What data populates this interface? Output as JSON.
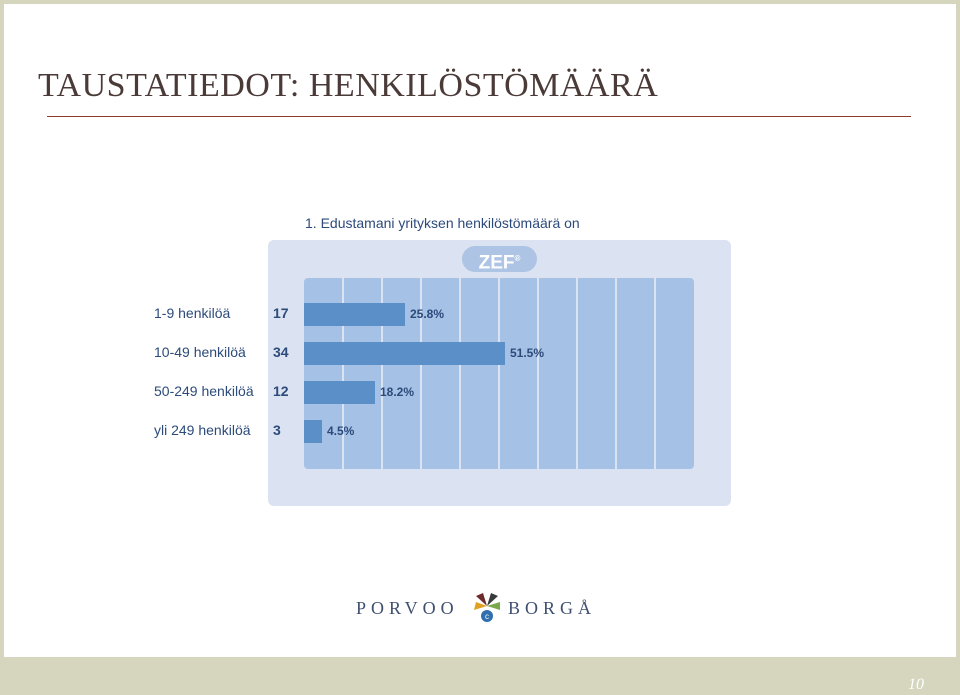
{
  "slide": {
    "title": "TAUSTATIEDOT: HENKILÖSTÖMÄÄRÄ",
    "page_number": "10",
    "logo_left": "PORVOO",
    "logo_right": "BORGÅ",
    "colors": {
      "title": "#4a3a38",
      "rule": "#8b3a2e",
      "frame": "#d6d6bf"
    }
  },
  "chart_data": {
    "type": "bar",
    "orientation": "horizontal",
    "title": "1. Edustamani yrityksen henkilöstömäärä on",
    "badge": "ZEF",
    "badge_mark": "®",
    "categories": [
      "1-9 henkilöä",
      "10-49 henkilöä",
      "50-249 henkilöä",
      "yli 249 henkilöä"
    ],
    "counts": [
      17,
      34,
      12,
      3
    ],
    "percent_labels": [
      "25.8%",
      "51.5%",
      "18.2%",
      "4.5%"
    ],
    "values": [
      25.8,
      51.5,
      18.2,
      4.5
    ],
    "xlim": [
      0,
      100
    ],
    "grid_divisions": 10,
    "colors": {
      "bar": "#5b8fc7",
      "plot_bg": "#a5c1e6",
      "panel_bg": "#dbe2f1",
      "text": "#2c4a7a",
      "badge": "#aec4e4"
    }
  }
}
